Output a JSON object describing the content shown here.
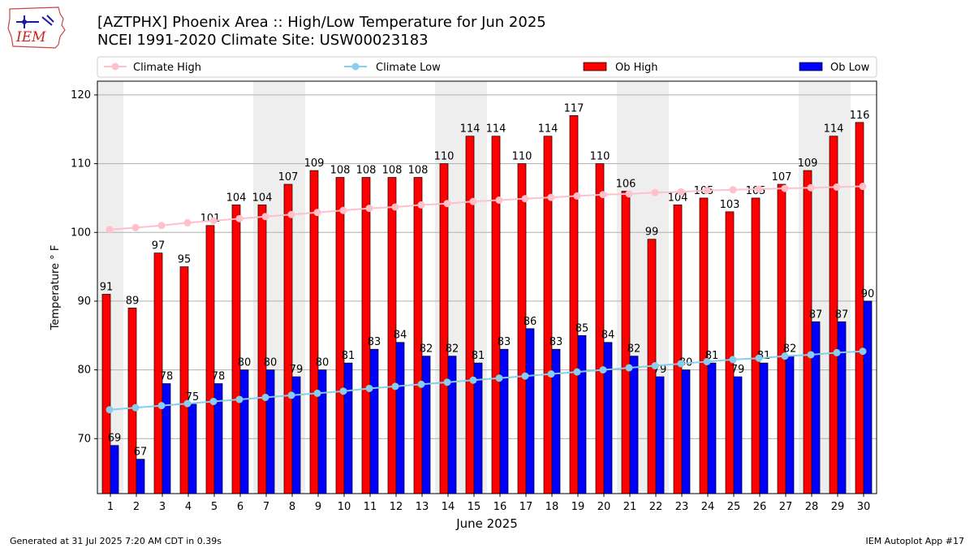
{
  "title_line1": "[AZTPHX] Phoenix Area :: High/Low Temperature for Jun 2025",
  "title_line2": "NCEI 1991-2020 Climate Site: USW00023183",
  "logo_text": "IEM",
  "footer_left": "Generated at 31 Jul 2025 7:20 AM CDT in 0.39s",
  "footer_right": "IEM Autoplot App #17",
  "colors": {
    "ob_high": "#ff0000",
    "ob_low": "#0000ff",
    "climate_high": "#ffc0cb",
    "climate_low": "#87ceeb",
    "weekend_shade": "#eeeeee",
    "grid": "#b0b0b0"
  },
  "chart_data": {
    "type": "bar",
    "xlabel": "June 2025",
    "ylabel": "Temperature ° F",
    "ylim": [
      62,
      122
    ],
    "yticks": [
      70,
      80,
      90,
      100,
      110,
      120
    ],
    "grid": "horizontal",
    "legend_position": "top",
    "shaded_days": [
      1,
      7,
      8,
      14,
      15,
      21,
      22,
      28,
      29
    ],
    "categories": [
      1,
      2,
      3,
      4,
      5,
      6,
      7,
      8,
      9,
      10,
      11,
      12,
      13,
      14,
      15,
      16,
      17,
      18,
      19,
      20,
      21,
      22,
      23,
      24,
      25,
      26,
      27,
      28,
      29,
      30
    ],
    "series": [
      {
        "name": "Climate High",
        "type": "line",
        "values": [
          100.4,
          100.7,
          101.0,
          101.4,
          101.7,
          102.0,
          102.3,
          102.6,
          102.9,
          103.2,
          103.5,
          103.7,
          104.0,
          104.2,
          104.5,
          104.7,
          104.9,
          105.1,
          105.3,
          105.5,
          105.6,
          105.8,
          105.9,
          106.1,
          106.2,
          106.3,
          106.4,
          106.5,
          106.6,
          106.7
        ]
      },
      {
        "name": "Climate Low",
        "type": "line",
        "values": [
          74.2,
          74.5,
          74.8,
          75.1,
          75.4,
          75.7,
          76.0,
          76.3,
          76.6,
          76.9,
          77.3,
          77.6,
          77.9,
          78.2,
          78.5,
          78.8,
          79.1,
          79.4,
          79.7,
          80.0,
          80.3,
          80.6,
          80.9,
          81.2,
          81.5,
          81.7,
          82.0,
          82.2,
          82.5,
          82.7
        ]
      },
      {
        "name": "Ob High",
        "type": "bar",
        "values": [
          91,
          89,
          97,
          95,
          101,
          104,
          104,
          107,
          109,
          108,
          108,
          108,
          108,
          110,
          114,
          114,
          110,
          114,
          117,
          110,
          106,
          99,
          104,
          105,
          103,
          105,
          107,
          109,
          114,
          116
        ]
      },
      {
        "name": "Ob Low",
        "type": "bar",
        "values": [
          69,
          67,
          78,
          75,
          78,
          80,
          80,
          79,
          80,
          81,
          83,
          84,
          82,
          82,
          81,
          83,
          86,
          83,
          85,
          84,
          82,
          79,
          80,
          81,
          79,
          81,
          82,
          87,
          87,
          90
        ]
      }
    ]
  }
}
